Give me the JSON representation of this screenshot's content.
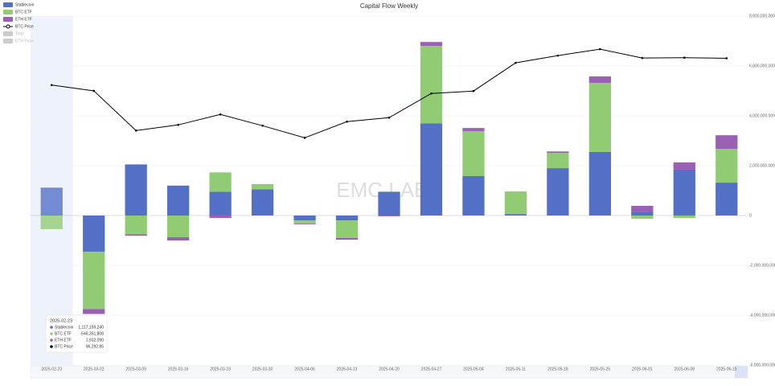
{
  "chart_data": {
    "type": "bar",
    "stacked": true,
    "title": "Capital Flow Weekly",
    "watermark": "EMC LABS",
    "categories": [
      "2025-02-23",
      "2025-03-02",
      "2025-03-09",
      "2025-03-16",
      "2025-03-23",
      "2025-03-30",
      "2025-04-06",
      "2025-04-13",
      "2025-04-20",
      "2025-04-27",
      "2025-05-04",
      "2025-05-11",
      "2025-05-18",
      "2025-05-25",
      "2025-06-01",
      "2025-06-08",
      "2025-06-15"
    ],
    "series": [
      {
        "name": "Stablecoin",
        "type": "bar",
        "color": "#5470c6",
        "values": [
          1117159240,
          -1450000000,
          2050000000,
          1200000000,
          950000000,
          1050000000,
          -200000000,
          -200000000,
          950000000,
          3700000000,
          1580000000,
          60000000,
          1900000000,
          2550000000,
          130000000,
          1840000000,
          1320000000
        ]
      },
      {
        "name": "BTC ETF",
        "type": "bar",
        "color": "#91cc75",
        "values": [
          -546351808,
          -2300000000,
          -750000000,
          -870000000,
          780000000,
          200000000,
          -120000000,
          -700000000,
          10000000,
          3100000000,
          1800000000,
          900000000,
          610000000,
          2770000000,
          -130000000,
          -100000000,
          1350000000
        ]
      },
      {
        "name": "ETH ETF",
        "type": "bar",
        "color": "#9a60b4",
        "values": [
          1932090,
          -200000000,
          -60000000,
          -130000000,
          -100000000,
          10000000,
          -30000000,
          -70000000,
          -30000000,
          160000000,
          130000000,
          5000000,
          60000000,
          260000000,
          260000000,
          290000000,
          550000000
        ]
      },
      {
        "name": "BTC Price",
        "type": "line",
        "axis": "y2",
        "color": "#000000",
        "values": [
          96292.85,
          94300,
          80650,
          82590,
          86190,
          82310,
          78150,
          83700,
          85080,
          93400,
          94225,
          103930,
          106420,
          108640,
          105590,
          105700,
          105500
        ]
      }
    ],
    "legend_hidden": [
      "Total",
      "ETH Price"
    ],
    "ylim": [
      -6000000000,
      8000000000
    ],
    "yticks": [
      {
        "value": -6000000000,
        "label": "-6,000,000,000"
      },
      {
        "value": -4000000000,
        "label": "-4,000,000,000"
      },
      {
        "value": -2000000000,
        "label": "-2,000,000,000"
      },
      0,
      {
        "value": 2000000000,
        "label": "2,000,000,000"
      },
      {
        "value": 4000000000,
        "label": "4,000,000,000"
      },
      {
        "value": 6000000000,
        "label": "6,000,000,000"
      },
      {
        "value": 8000000000,
        "label": "8,000,000,000"
      }
    ],
    "y2lim": [
      0,
      120000
    ],
    "grid": true,
    "legend_position": "top-left",
    "tooltip": {
      "category_index": 0,
      "labels": [
        "1,117,159,240",
        "-546,351,808",
        "1,932,090",
        "96,292.85"
      ]
    }
  }
}
